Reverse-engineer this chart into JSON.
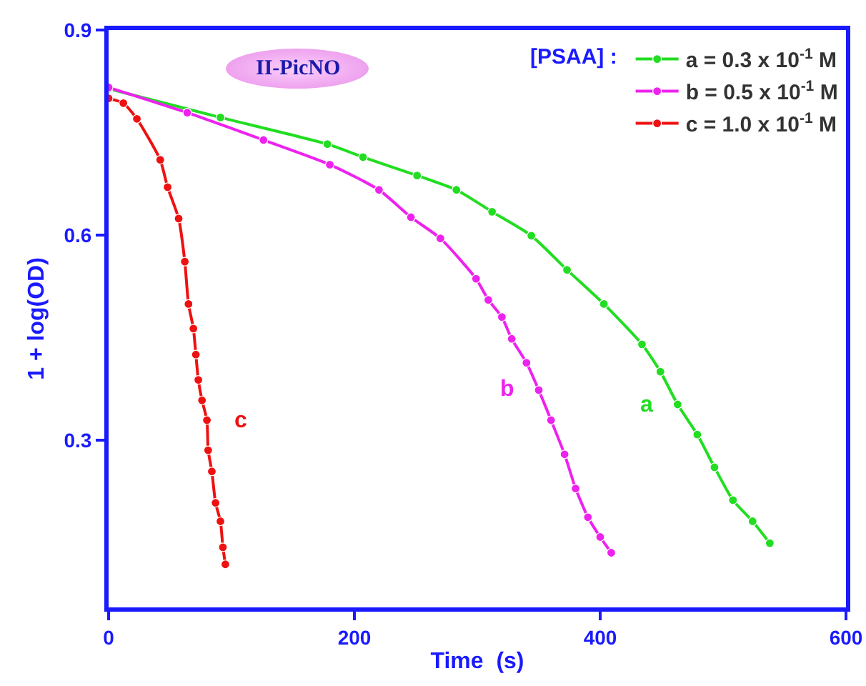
{
  "chart_data": {
    "type": "line",
    "xlabel": "Time  (s)",
    "ylabel": "1 + log(OD)",
    "legend_title": "[PSAA] :",
    "xlim": [
      0,
      600
    ],
    "xticks": [
      0,
      200,
      400,
      600
    ],
    "ylim": [
      0.055,
      0.9
    ],
    "yticks": [
      0.3,
      0.6,
      0.9
    ],
    "grid": false,
    "legend": "top right",
    "marker": "circle",
    "line_style": "solid",
    "annotations": [
      "II-PicNO",
      "a",
      "b",
      "c"
    ],
    "series": [
      {
        "name": "a = 0.3 x 10$^{-1}$ M",
        "color": "#22dd22",
        "x": [
          0,
          91,
          178,
          207,
          251,
          283,
          312,
          344,
          373,
          403,
          434,
          449,
          463,
          479,
          493,
          508,
          524,
          538
        ],
        "values": [
          0.814,
          0.772,
          0.733,
          0.714,
          0.687,
          0.666,
          0.634,
          0.599,
          0.549,
          0.499,
          0.44,
          0.4,
          0.352,
          0.308,
          0.26,
          0.212,
          0.181,
          0.149
        ]
      },
      {
        "name": "b = 0.5 x 10$^{-1}$ M",
        "color": "#ee22ee",
        "x": [
          0,
          64,
          126,
          180,
          220,
          246,
          270,
          299,
          309,
          320,
          328,
          340,
          350,
          360,
          371,
          380,
          390,
          400,
          409
        ],
        "values": [
          0.816,
          0.779,
          0.739,
          0.703,
          0.666,
          0.626,
          0.595,
          0.536,
          0.505,
          0.48,
          0.448,
          0.413,
          0.373,
          0.329,
          0.279,
          0.229,
          0.187,
          0.158,
          0.135
        ]
      },
      {
        "name": "c = 1.0 x 10$^{-1}$ M",
        "color": "#ee1111",
        "x": [
          0,
          12,
          23,
          42,
          48,
          57,
          62,
          65,
          69,
          71,
          73,
          76,
          80,
          81,
          84,
          87,
          91,
          93,
          95
        ],
        "values": [
          0.8,
          0.793,
          0.77,
          0.71,
          0.67,
          0.624,
          0.561,
          0.499,
          0.463,
          0.425,
          0.388,
          0.358,
          0.329,
          0.285,
          0.254,
          0.208,
          0.181,
          0.143,
          0.118
        ]
      }
    ]
  }
}
